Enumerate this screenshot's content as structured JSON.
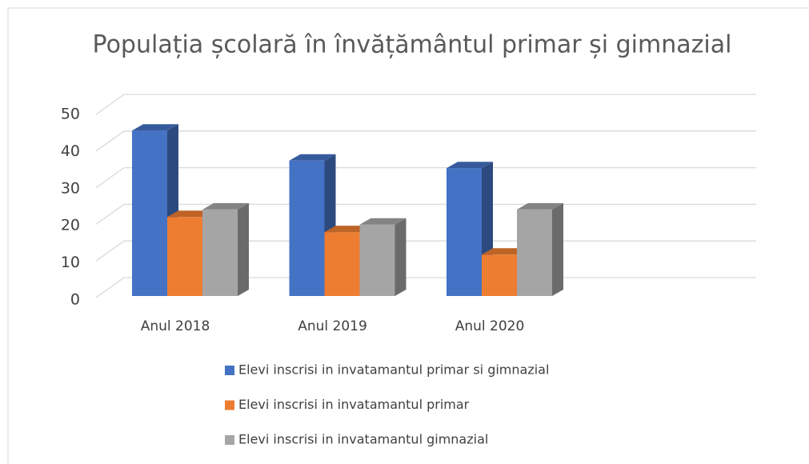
{
  "chart_data": {
    "type": "bar3d",
    "title": "Populația școlară în învățământul primar și gimnazial",
    "categories": [
      "Anul 2018",
      "Anul 2019",
      "Anul 2020"
    ],
    "series": [
      {
        "name": "Elevi inscrisi in invatamantul primar si gimnazial",
        "color": "#4472c4",
        "values": [
          44,
          36,
          34
        ]
      },
      {
        "name": "Elevi inscrisi in invatamantul primar",
        "color": "#ed7d31",
        "values": [
          21,
          17,
          11
        ]
      },
      {
        "name": "Elevi inscrisi in invatamantul gimnazial",
        "color": "#a5a5a5",
        "values": [
          23,
          19,
          23
        ]
      }
    ],
    "ylim": [
      0,
      50
    ],
    "yticks": [
      0,
      10,
      20,
      30,
      40,
      50
    ],
    "grid": true,
    "legend": "bottom"
  }
}
